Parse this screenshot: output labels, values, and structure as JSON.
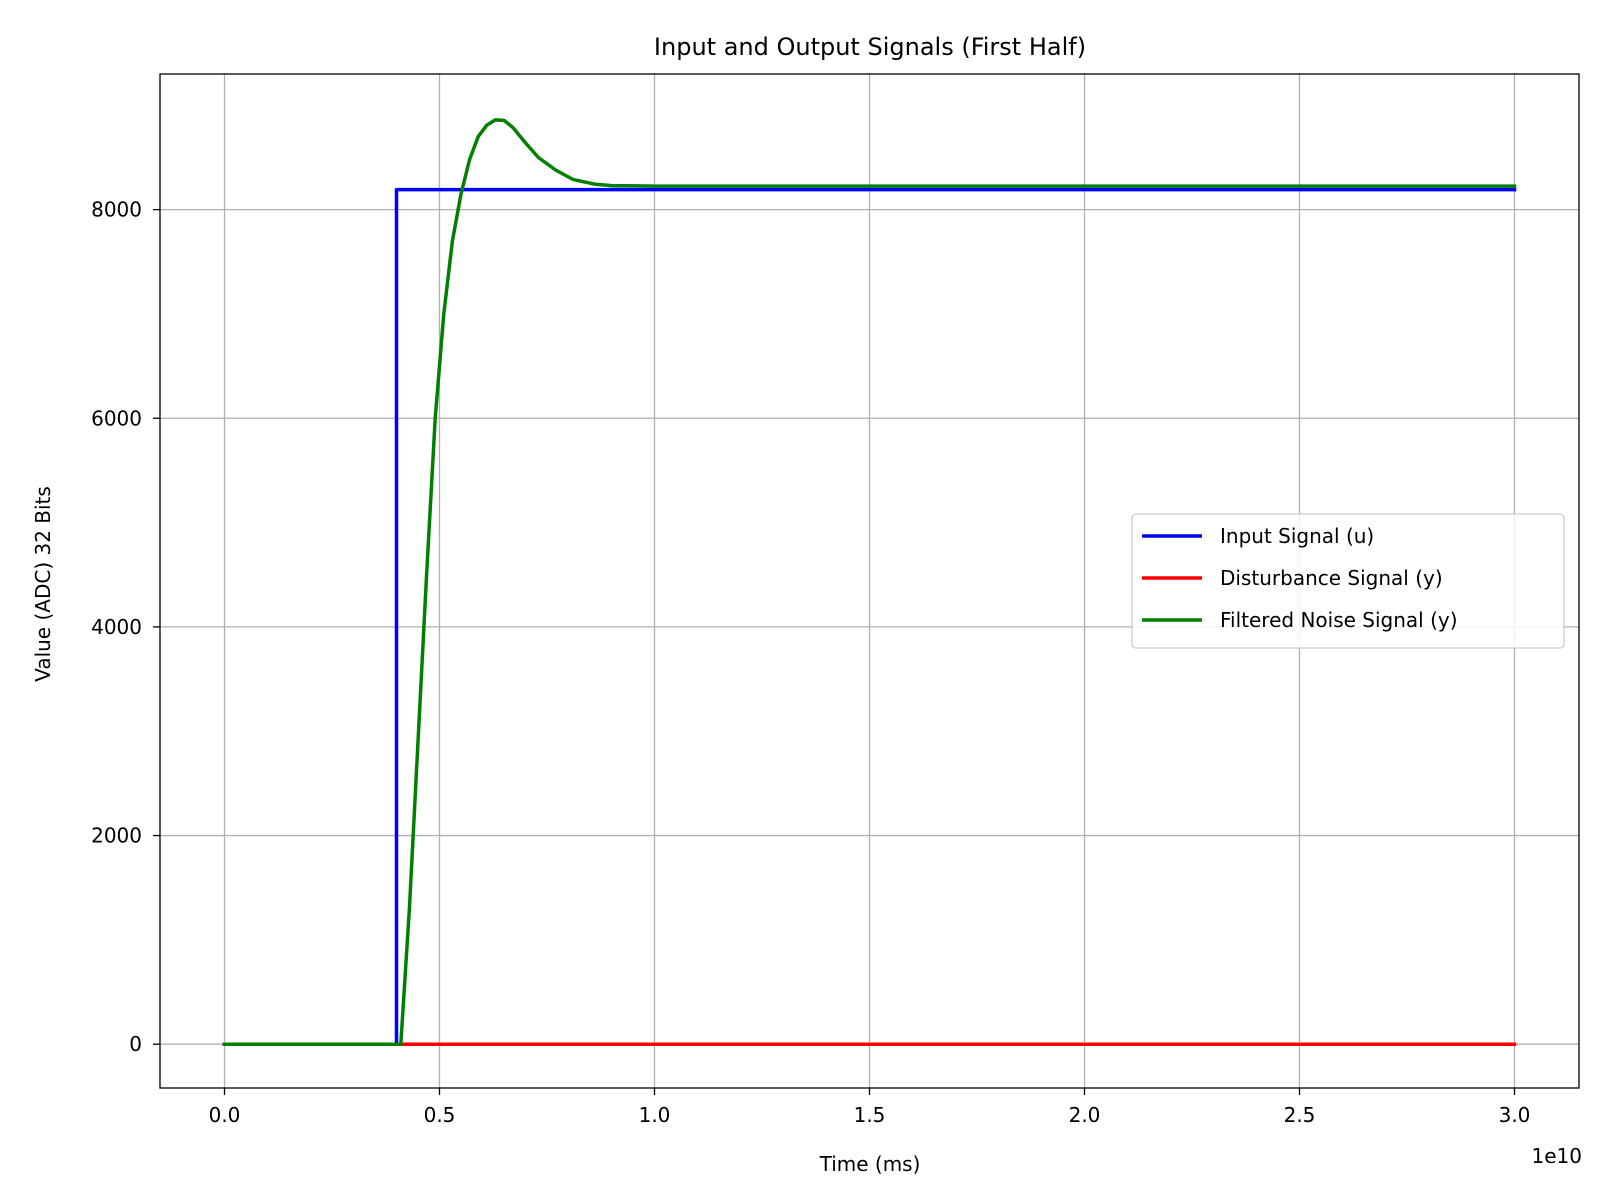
{
  "chart_data": {
    "type": "line",
    "title": "Input and Output Signals (First Half)",
    "xlabel": "Time (ms)",
    "ylabel": "Value (ADC) 32 Bits",
    "x_offset_text": "1e10",
    "xlim": [
      -0.15,
      3.15
    ],
    "ylim": [
      -420,
      9300
    ],
    "x_scale_factor": 10000000000,
    "x_ticks": [
      0.0,
      0.5,
      1.0,
      1.5,
      2.0,
      2.5,
      3.0
    ],
    "x_tick_labels": [
      "0.0",
      "0.5",
      "1.0",
      "1.5",
      "2.0",
      "2.5",
      "3.0"
    ],
    "y_ticks": [
      0,
      2000,
      4000,
      6000,
      8000
    ],
    "y_tick_labels": [
      "0",
      "2000",
      "4000",
      "6000",
      "8000"
    ],
    "grid": true,
    "legend_position": "center-right",
    "series": [
      {
        "name": "Input Signal (u)",
        "color": "#0000ff",
        "x": [
          0.0,
          0.4,
          0.4,
          3.0
        ],
        "y": [
          0,
          0,
          8192,
          8192
        ]
      },
      {
        "name": "Disturbance Signal (y)",
        "color": "#ff0000",
        "x": [
          0.0,
          3.0
        ],
        "y": [
          0,
          0
        ]
      },
      {
        "name": "Filtered Noise Signal (y)",
        "color": "#008000",
        "x": [
          0.0,
          0.41,
          0.43,
          0.45,
          0.47,
          0.49,
          0.51,
          0.53,
          0.55,
          0.57,
          0.59,
          0.61,
          0.63,
          0.65,
          0.67,
          0.7,
          0.73,
          0.77,
          0.81,
          0.86,
          0.9,
          1.0,
          3.0
        ],
        "y": [
          0,
          0,
          1300,
          2900,
          4500,
          6000,
          7000,
          7700,
          8150,
          8480,
          8700,
          8810,
          8860,
          8855,
          8790,
          8640,
          8500,
          8380,
          8290,
          8245,
          8230,
          8225,
          8225
        ]
      }
    ]
  }
}
